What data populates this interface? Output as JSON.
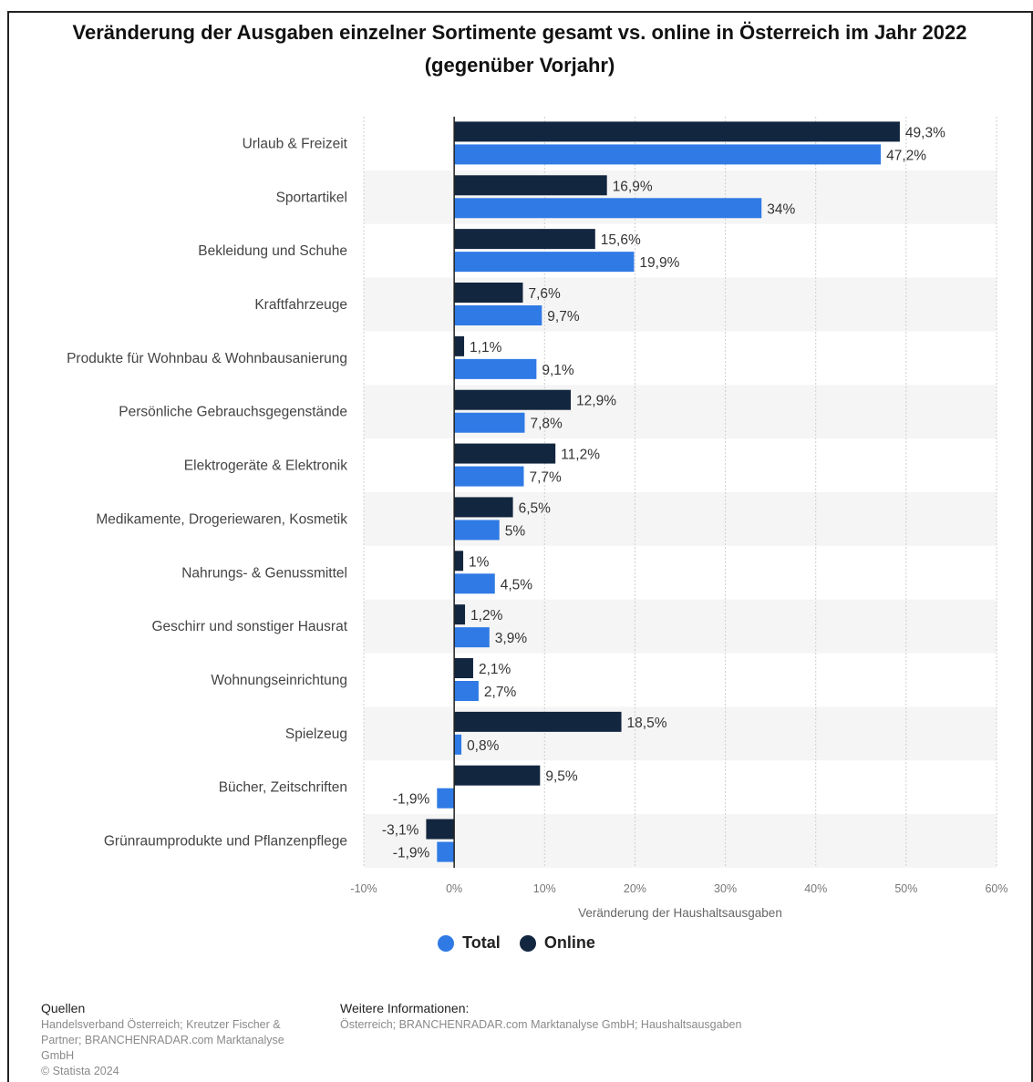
{
  "title": "Veränderung der Ausgaben einzelner Sortimente gesamt vs. online in Österreich im Jahr 2022 (gegenüber Vorjahr)",
  "colors": {
    "total": "#2f7ae5",
    "online": "#13263f",
    "band": "#f5f5f5",
    "grid": "#cfcfcf"
  },
  "chart_data": {
    "type": "bar",
    "orientation": "horizontal",
    "categories": [
      "Urlaub & Freizeit",
      "Sportartikel",
      "Bekleidung und Schuhe",
      "Kraftfahrzeuge",
      "Produkte für Wohnbau & Wohnbausanierung",
      "Persönliche Gebrauchsgegenstände",
      "Elektrogeräte & Elektronik",
      "Medikamente, Drogeriewaren, Kosmetik",
      "Nahrungs- & Genussmittel",
      "Geschirr und sonstiger Hausrat",
      "Wohnungseinrichtung",
      "Spielzeug",
      "Bücher, Zeitschriften",
      "Grünraumprodukte und Pflanzenpflege"
    ],
    "series": [
      {
        "name": "Online",
        "values": [
          49.3,
          16.9,
          15.6,
          7.6,
          1.1,
          12.9,
          11.2,
          6.5,
          1,
          1.2,
          2.1,
          18.5,
          9.5,
          -3.1
        ],
        "labels": [
          "49,3%",
          "16,9%",
          "15,6%",
          "7,6%",
          "1,1%",
          "12,9%",
          "11,2%",
          "6,5%",
          "1%",
          "1,2%",
          "2,1%",
          "18,5%",
          "9,5%",
          "-3,1%"
        ]
      },
      {
        "name": "Total",
        "values": [
          47.2,
          34,
          19.9,
          9.7,
          9.1,
          7.8,
          7.7,
          5,
          4.5,
          3.9,
          2.7,
          0.8,
          -1.9,
          -1.9
        ],
        "labels": [
          "47,2%",
          "34%",
          "19,9%",
          "9,7%",
          "9,1%",
          "7,8%",
          "7,7%",
          "5%",
          "4,5%",
          "3,9%",
          "2,7%",
          "0,8%",
          "-1,9%",
          "-1,9%"
        ]
      }
    ],
    "xlim": [
      -10,
      60
    ],
    "xticks": [
      -10,
      0,
      10,
      20,
      30,
      40,
      50,
      60
    ],
    "xtick_labels": [
      "-10%",
      "0%",
      "10%",
      "20%",
      "30%",
      "40%",
      "50%",
      "60%"
    ],
    "xlabel": "Veränderung der Haushaltsausgaben",
    "grid": true,
    "legend_position": "bottom"
  },
  "legend": [
    {
      "label": "Total",
      "color": "#2f7ae5"
    },
    {
      "label": "Online",
      "color": "#13263f"
    }
  ],
  "footer": {
    "sources_heading": "Quellen",
    "sources_lines": [
      "Handelsverband Österreich; Kreutzer Fischer &",
      "Partner; BRANCHENRADAR.com Marktanalyse",
      "GmbH",
      "© Statista 2024"
    ],
    "info_heading": "Weitere Informationen:",
    "info_text": "Österreich; BRANCHENRADAR.com Marktanalyse GmbH; Haushaltsausgaben"
  }
}
